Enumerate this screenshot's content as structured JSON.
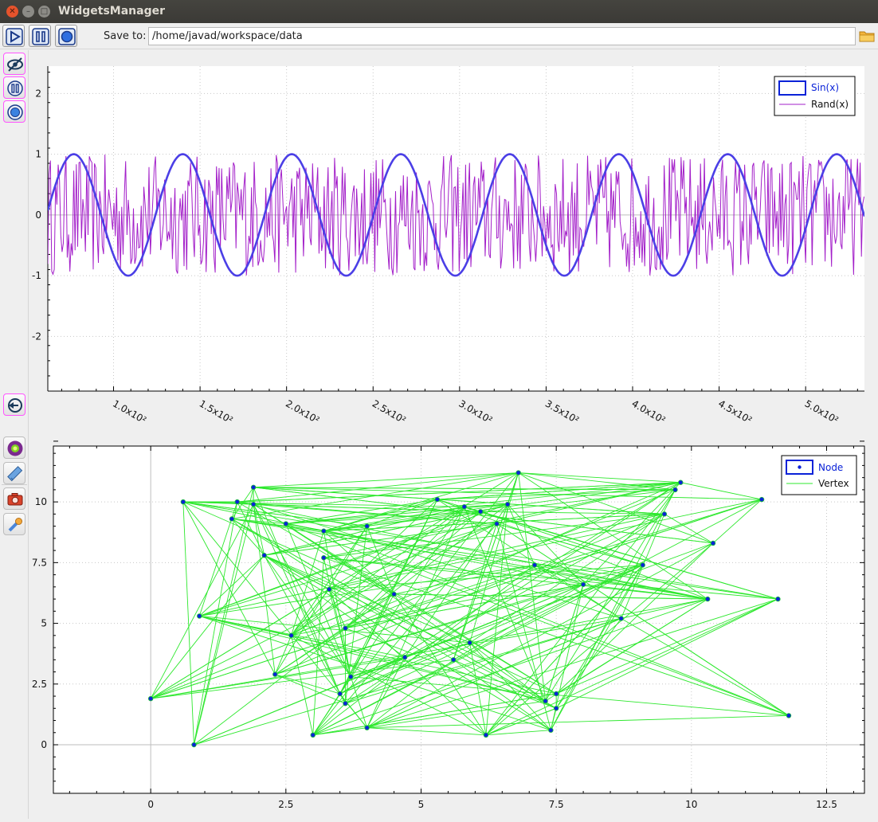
{
  "window": {
    "title": "WidgetsManager"
  },
  "toolbar": {
    "save_label": "Save to:",
    "save_path": "/home/javad/workspace/data"
  },
  "colors": {
    "sin": "#4b3fe6",
    "rand": "#a31fc9",
    "vertex": "#2ee82e",
    "node": "#0a22d8",
    "highlight": "#ff55ff"
  },
  "top_plot": {
    "legend": {
      "sin": "Sin(x)",
      "rand": "Rand(x)"
    },
    "y_ticks": [
      "2",
      "1",
      "0",
      "-1",
      "-2"
    ],
    "x_ticks": [
      "1.0x10²",
      "1.5x10²",
      "2.0x10²",
      "2.5x10²",
      "3.0x10²",
      "3.5x10²",
      "4.0x10²",
      "4.5x10²",
      "5.0x10²"
    ]
  },
  "bottom_plot": {
    "legend": {
      "node": "Node",
      "vertex": "Vertex"
    },
    "y_ticks": [
      "10",
      "7.5",
      "5",
      "2.5",
      "0"
    ],
    "x_ticks": [
      "0",
      "2.5",
      "5",
      "7.5",
      "10",
      "12.5"
    ]
  },
  "chart_data": [
    {
      "type": "line",
      "title": "",
      "xlabel": "",
      "ylabel": "",
      "xlim": [
        62,
        534
      ],
      "ylim": [
        -2.9,
        2.45
      ],
      "grid": true,
      "legend_position": "top-right",
      "series": [
        {
          "name": "Sin(x)",
          "function": "sin",
          "period": 63,
          "amplitude": 1,
          "x_start": 62,
          "x_end": 534
        },
        {
          "name": "Rand(x)",
          "function": "random",
          "range": [
            -1,
            1
          ],
          "x_start": 62,
          "x_end": 534
        }
      ]
    },
    {
      "type": "scatter",
      "title": "",
      "xlabel": "",
      "ylabel": "",
      "xlim": [
        -1.8,
        13.2
      ],
      "ylim": [
        -2.0,
        12.3
      ],
      "grid": true,
      "legend_position": "top-right",
      "nodes": [
        [
          0.6,
          10.0
        ],
        [
          1.5,
          9.3
        ],
        [
          1.6,
          10.0
        ],
        [
          1.9,
          10.6
        ],
        [
          1.9,
          9.9
        ],
        [
          2.1,
          7.8
        ],
        [
          0.9,
          5.3
        ],
        [
          2.5,
          9.1
        ],
        [
          3.2,
          8.8
        ],
        [
          3.2,
          7.7
        ],
        [
          3.3,
          6.4
        ],
        [
          2.6,
          4.5
        ],
        [
          2.3,
          2.9
        ],
        [
          3.6,
          4.8
        ],
        [
          3.7,
          2.8
        ],
        [
          3.5,
          2.1
        ],
        [
          3.6,
          1.7
        ],
        [
          4.0,
          0.7
        ],
        [
          3.0,
          0.4
        ],
        [
          0.0,
          1.9
        ],
        [
          0.8,
          0.0
        ],
        [
          4.0,
          9.0
        ],
        [
          4.5,
          6.2
        ],
        [
          4.7,
          3.6
        ],
        [
          5.3,
          10.1
        ],
        [
          5.8,
          9.8
        ],
        [
          6.1,
          9.6
        ],
        [
          6.4,
          9.1
        ],
        [
          6.6,
          9.9
        ],
        [
          6.8,
          11.2
        ],
        [
          5.6,
          3.5
        ],
        [
          5.9,
          4.2
        ],
        [
          6.2,
          0.4
        ],
        [
          7.1,
          7.4
        ],
        [
          7.3,
          1.8
        ],
        [
          7.4,
          0.6
        ],
        [
          7.5,
          1.5
        ],
        [
          7.5,
          2.1
        ],
        [
          8.0,
          6.6
        ],
        [
          8.7,
          5.2
        ],
        [
          9.1,
          7.4
        ],
        [
          9.5,
          9.5
        ],
        [
          9.7,
          10.5
        ],
        [
          9.8,
          10.8
        ],
        [
          10.3,
          6.0
        ],
        [
          10.4,
          8.3
        ],
        [
          11.3,
          10.1
        ],
        [
          11.6,
          6.0
        ],
        [
          11.8,
          1.2
        ]
      ],
      "edge_seed": 7,
      "edges_per_node": 6
    }
  ]
}
